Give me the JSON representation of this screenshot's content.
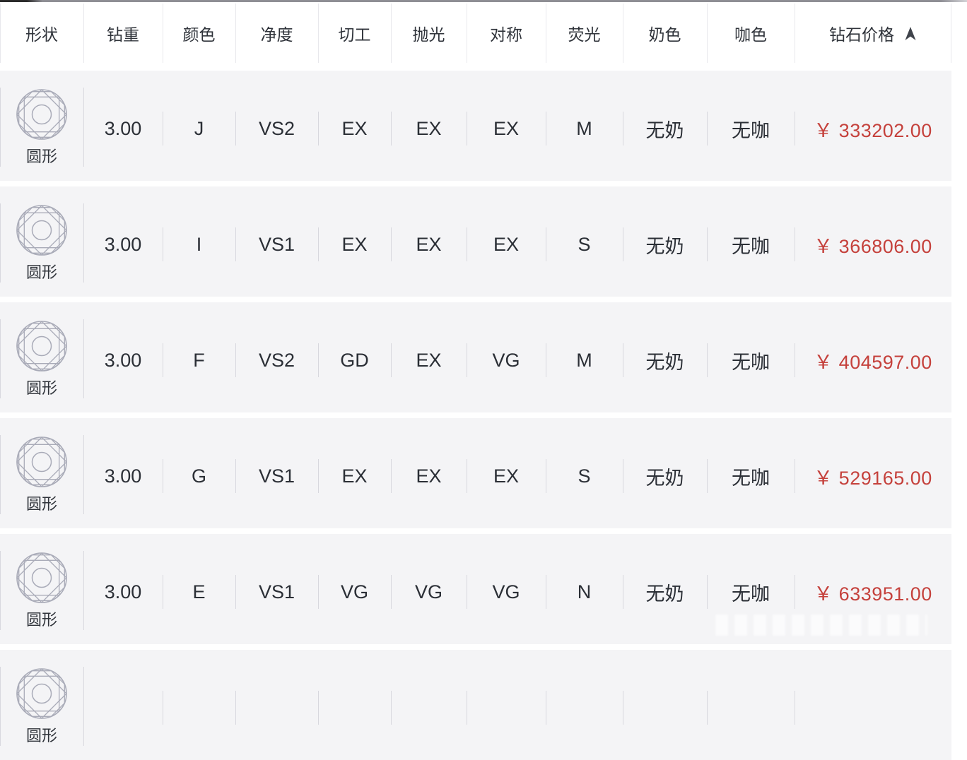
{
  "colors": {
    "price_red": "#c5413c",
    "row_bg": "#f4f4f6",
    "header_bg": "#ffffff",
    "row_separator": "#d8d8de",
    "header_separator": "#e8e8ec",
    "text_dark": "#2b2f36",
    "diamond_icon_gray": "#a9abb8",
    "sort_arrow": "#3f434b"
  },
  "table": {
    "columns": [
      {
        "key": "shape",
        "label": "形状"
      },
      {
        "key": "carat",
        "label": "钻重"
      },
      {
        "key": "color",
        "label": "颜色"
      },
      {
        "key": "clarity",
        "label": "净度"
      },
      {
        "key": "cut",
        "label": "切工"
      },
      {
        "key": "polish",
        "label": "抛光"
      },
      {
        "key": "symmetry",
        "label": "对称"
      },
      {
        "key": "fluorescence",
        "label": "荧光"
      },
      {
        "key": "milky",
        "label": "奶色"
      },
      {
        "key": "brown",
        "label": "咖色"
      },
      {
        "key": "price",
        "label": "钻石价格"
      }
    ],
    "sort": {
      "column": "price",
      "direction": "asc",
      "icon": "sort-arrow-up-icon"
    },
    "rows": [
      {
        "shape": "圆形",
        "carat": "3.00",
        "color": "J",
        "clarity": "VS2",
        "cut": "EX",
        "polish": "EX",
        "symmetry": "EX",
        "fluorescence": "M",
        "milky": "无奶",
        "brown": "无咖",
        "price": "￥ 333202.00"
      },
      {
        "shape": "圆形",
        "carat": "3.00",
        "color": "I",
        "clarity": "VS1",
        "cut": "EX",
        "polish": "EX",
        "symmetry": "EX",
        "fluorescence": "S",
        "milky": "无奶",
        "brown": "无咖",
        "price": "￥ 366806.00"
      },
      {
        "shape": "圆形",
        "carat": "3.00",
        "color": "F",
        "clarity": "VS2",
        "cut": "GD",
        "polish": "EX",
        "symmetry": "VG",
        "fluorescence": "M",
        "milky": "无奶",
        "brown": "无咖",
        "price": "￥ 404597.00"
      },
      {
        "shape": "圆形",
        "carat": "3.00",
        "color": "G",
        "clarity": "VS1",
        "cut": "EX",
        "polish": "EX",
        "symmetry": "EX",
        "fluorescence": "S",
        "milky": "无奶",
        "brown": "无咖",
        "price": "￥ 529165.00"
      },
      {
        "shape": "圆形",
        "carat": "3.00",
        "color": "E",
        "clarity": "VS1",
        "cut": "VG",
        "polish": "VG",
        "symmetry": "VG",
        "fluorescence": "N",
        "milky": "无奶",
        "brown": "无咖",
        "price": "￥ 633951.00"
      },
      {
        "shape": "圆形",
        "carat": "",
        "color": "",
        "clarity": "",
        "cut": "",
        "polish": "",
        "symmetry": "",
        "fluorescence": "",
        "milky": "",
        "brown": "",
        "price": ""
      }
    ]
  }
}
